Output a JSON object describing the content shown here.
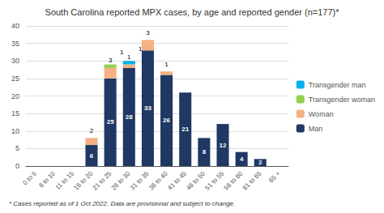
{
  "chart_data": {
    "type": "bar",
    "title": "South Carolina reported MPX cases, by age and reported gender (n=177)*",
    "footnote": "* Cases reported as of 1 Oct 2022. Data are provisional and subject to change.",
    "categories": [
      "0 to 5",
      "6 to 10",
      "11 to 15",
      "16 to 20",
      "21 to 25",
      "26 to 30",
      "31 to 35",
      "36 to 40",
      "41 to 45",
      "46 to 50",
      "51 to 55",
      "56 to 60",
      "61 to 65",
      "65 +"
    ],
    "series": [
      {
        "name": "Man",
        "color": "#1F3864",
        "values": [
          0,
          0,
          0,
          6,
          25,
          28,
          33,
          26,
          21,
          8,
          12,
          4,
          2,
          0
        ]
      },
      {
        "name": "Woman",
        "color": "#F4B183",
        "values": [
          0,
          0,
          0,
          2,
          3,
          1,
          3,
          1,
          0,
          0,
          0,
          0,
          0,
          0
        ]
      },
      {
        "name": "Transgender woman",
        "color": "#92D050",
        "values": [
          0,
          0,
          0,
          0,
          1,
          0,
          0,
          0,
          0,
          0,
          0,
          0,
          0,
          0
        ]
      },
      {
        "name": "Transgender man",
        "color": "#00B0F0",
        "values": [
          0,
          0,
          0,
          0,
          0,
          1,
          0,
          0,
          0,
          0,
          0,
          0,
          0,
          0
        ]
      }
    ],
    "ylim": [
      0,
      40
    ],
    "yticks": [
      0,
      5,
      10,
      15,
      20,
      25,
      30,
      35,
      40
    ],
    "grid": true,
    "stacked": true,
    "data_labels": true,
    "legend": "right"
  }
}
